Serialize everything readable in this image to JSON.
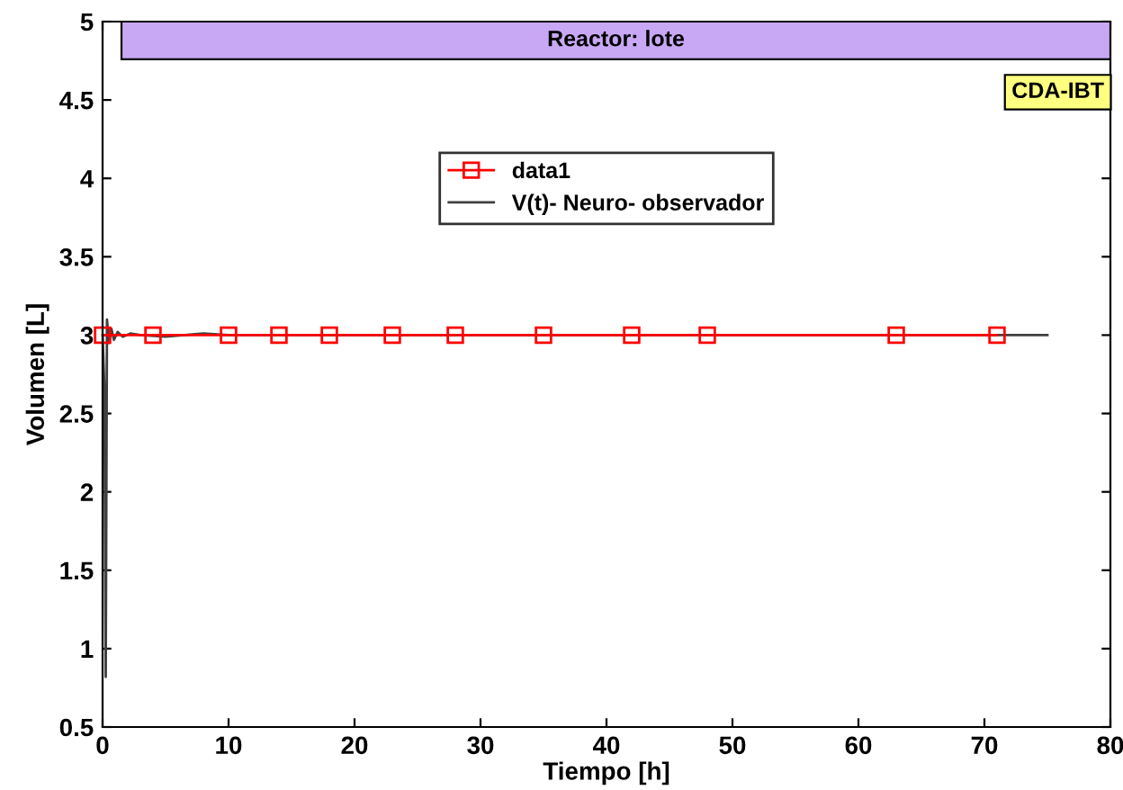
{
  "chart_data": {
    "type": "line",
    "xlabel": "Tiempo [h]",
    "ylabel": "Volumen [L]",
    "annotations": [
      "Reactor: lote",
      "CDA-IBT"
    ],
    "xlim": [
      0,
      80
    ],
    "ylim": [
      0.5,
      5
    ],
    "xticks": [
      0,
      10,
      20,
      30,
      40,
      50,
      60,
      70,
      80
    ],
    "yticks": [
      0.5,
      1,
      1.5,
      2,
      2.5,
      3,
      3.5,
      4,
      4.5,
      5
    ],
    "grid": false,
    "legend": "top",
    "series": [
      {
        "name": "data1",
        "color": "#ff0000",
        "marker": "square",
        "x": [
          0,
          4,
          10,
          14,
          18,
          23,
          28,
          35,
          42,
          48,
          63,
          71
        ],
        "values": [
          3,
          3,
          3,
          3,
          3,
          3,
          3,
          3,
          3,
          3,
          3,
          3
        ]
      },
      {
        "name": "V(t)- Neuro- observador",
        "color": "#404040",
        "marker": "none",
        "x": [
          0,
          0.15,
          0.25,
          0.35,
          0.5,
          0.7,
          0.9,
          1.2,
          1.6,
          2.2,
          3,
          5,
          8,
          10,
          75
        ],
        "values": [
          3.0,
          2.65,
          0.82,
          3.1,
          2.95,
          3.04,
          2.97,
          3.02,
          2.99,
          3.01,
          3.0,
          2.99,
          3.01,
          3.0,
          3.0
        ]
      }
    ]
  }
}
